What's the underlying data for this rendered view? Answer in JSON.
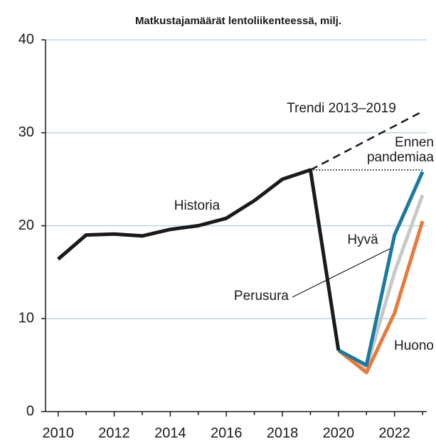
{
  "chart_data": {
    "type": "line",
    "title": "Matkustajamäärät lentoliikenteessä, milj.",
    "x": [
      2010,
      2011,
      2012,
      2013,
      2014,
      2015,
      2016,
      2017,
      2018,
      2019,
      2020,
      2021,
      2022,
      2023
    ],
    "series": [
      {
        "name": "Trendi 2013–2019",
        "color": "#1a1a1a",
        "dash": "dashed",
        "values": [
          null,
          null,
          null,
          null,
          null,
          null,
          null,
          null,
          null,
          26.0,
          null,
          null,
          null,
          32.3
        ]
      },
      {
        "color": "#1a1a1a",
        "dash": "dotted",
        "values": [
          null,
          null,
          null,
          null,
          null,
          null,
          null,
          null,
          null,
          26.0,
          null,
          null,
          null,
          26.0
        ]
      },
      {
        "name": "Perusura",
        "color": "#c8c8c8",
        "values": [
          null,
          null,
          null,
          null,
          null,
          null,
          null,
          null,
          null,
          null,
          6.6,
          4.7,
          15.0,
          23.3
        ]
      },
      {
        "name": "Huono",
        "color": "#e87a3c",
        "values": [
          null,
          null,
          null,
          null,
          null,
          null,
          null,
          null,
          null,
          null,
          6.6,
          4.2,
          10.6,
          20.5
        ]
      },
      {
        "name": "Hyvä",
        "color": "#1b7a9e",
        "values": [
          null,
          null,
          null,
          null,
          null,
          null,
          null,
          null,
          null,
          null,
          6.6,
          5.0,
          19.0,
          25.8
        ]
      },
      {
        "name": "Historia",
        "color": "#1a1a1a",
        "values": [
          16.4,
          19.0,
          19.1,
          18.9,
          19.6,
          20.0,
          20.8,
          22.7,
          25.0,
          26.0,
          6.6,
          null,
          null,
          null
        ]
      }
    ],
    "annotations": [
      "Ennen",
      "pandemiaa"
    ],
    "xlim": [
      2009.55,
      2023.15
    ],
    "xticks": [
      2010,
      2012,
      2014,
      2016,
      2018,
      2020,
      2022
    ],
    "xticks_minor": [
      2011,
      2013,
      2015,
      2017,
      2019,
      2021,
      2023
    ],
    "ylim": [
      0,
      40
    ],
    "yticks": [
      0,
      10,
      20,
      30,
      40
    ],
    "grid": true,
    "grid_color": "#a8cfe0"
  }
}
